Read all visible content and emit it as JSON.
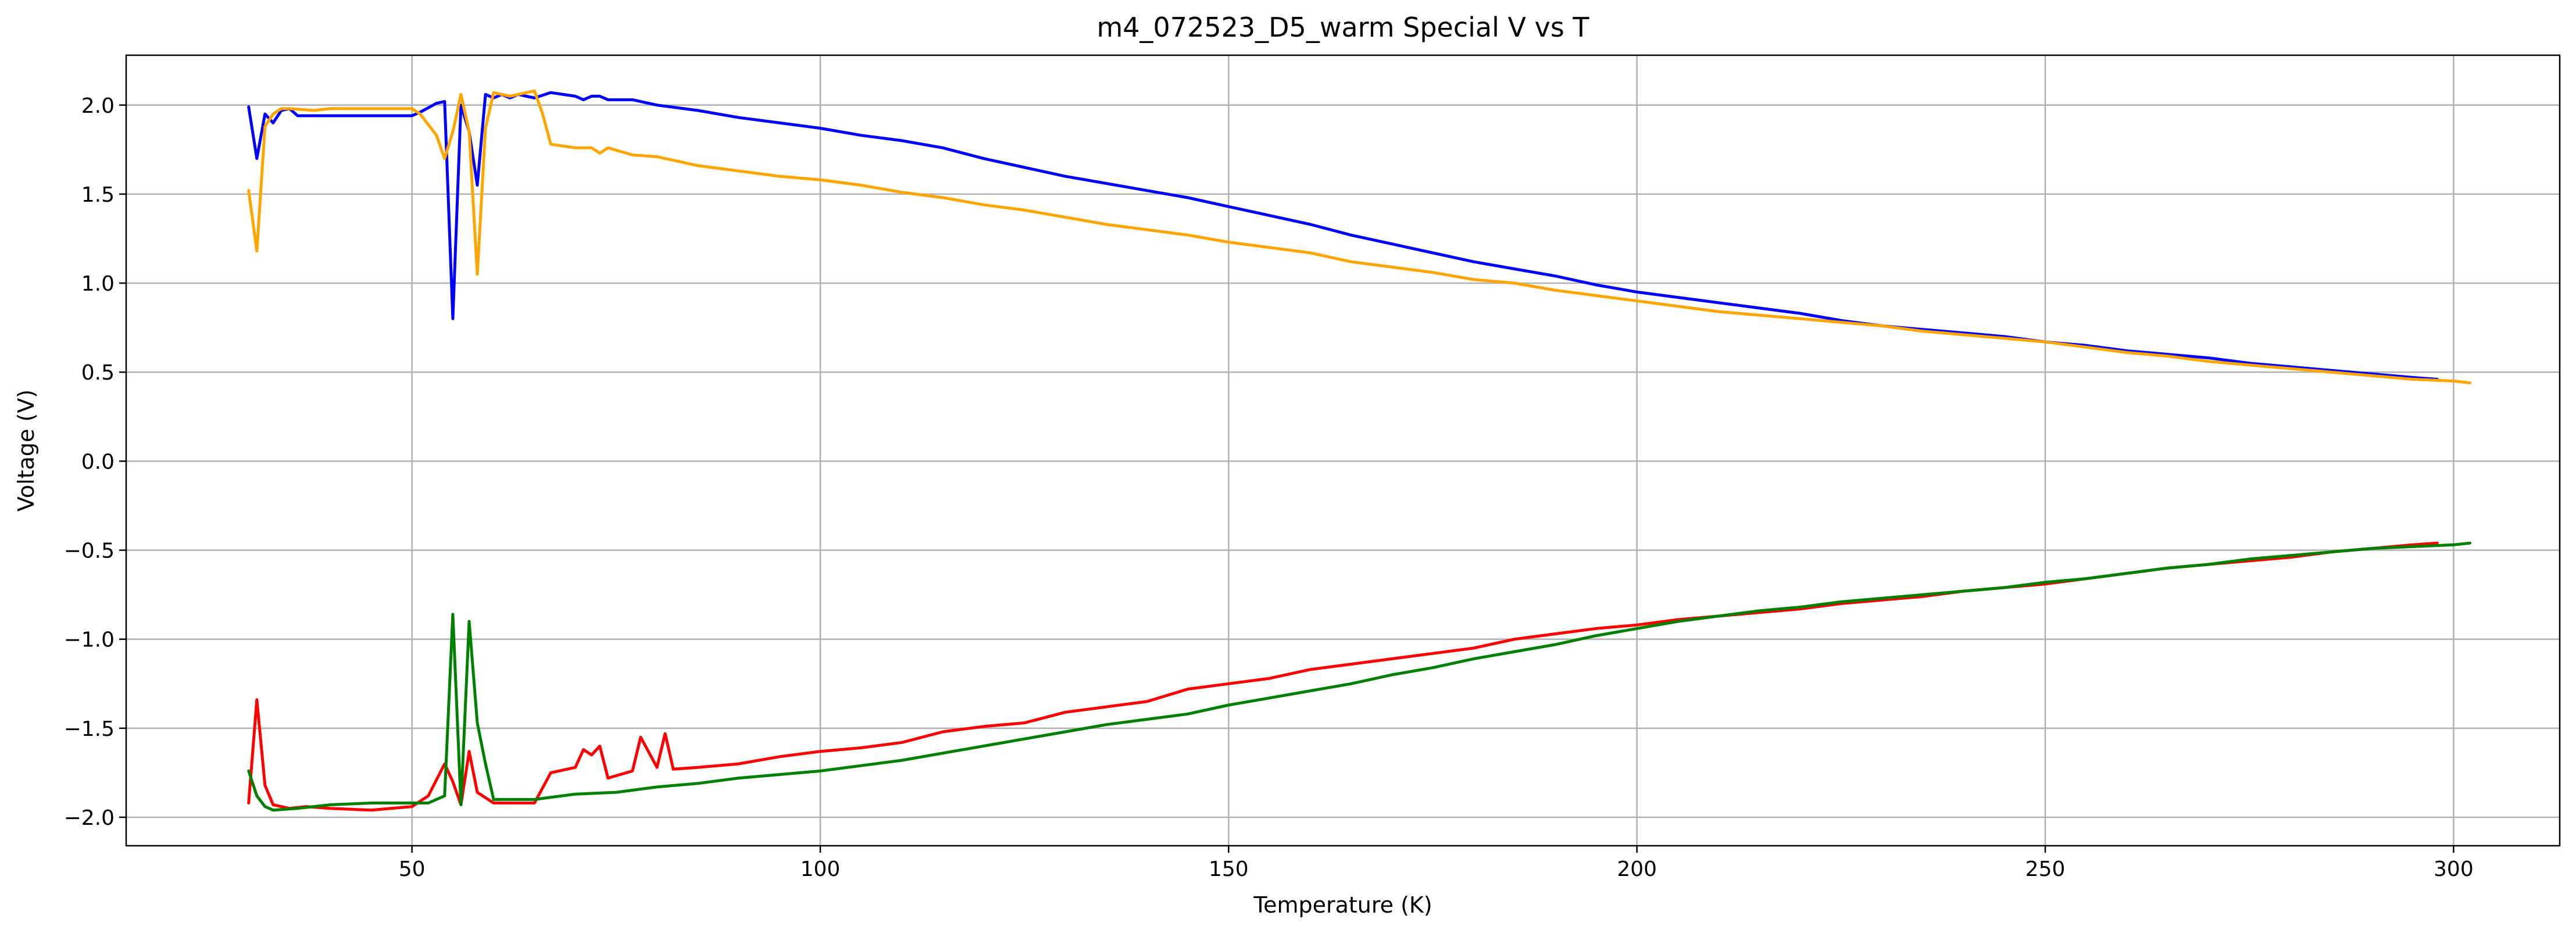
{
  "chart_data": {
    "type": "line",
    "title": "m4_072523_D5_warm Special V vs T",
    "xlabel": "Temperature (K)",
    "ylabel": "Voltage (V)",
    "xlim": [
      15,
      313
    ],
    "ylim": [
      -2.16,
      2.28
    ],
    "xticks": [
      50,
      100,
      150,
      200,
      250,
      300
    ],
    "yticks": [
      -2.0,
      -1.5,
      -1.0,
      -0.5,
      0.0,
      0.5,
      1.0,
      1.5,
      2.0
    ],
    "xtick_labels": [
      "50",
      "100",
      "150",
      "200",
      "250",
      "300"
    ],
    "ytick_labels": [
      "−2.0",
      "−1.5",
      "−1.0",
      "−0.5",
      "0.0",
      "0.5",
      "1.0",
      "1.5",
      "2.0"
    ],
    "grid": true,
    "series": [
      {
        "color": "#0000ff",
        "points": [
          [
            30,
            1.99
          ],
          [
            31,
            1.7
          ],
          [
            32,
            1.95
          ],
          [
            33,
            1.9
          ],
          [
            34,
            1.97
          ],
          [
            35,
            1.98
          ],
          [
            36,
            1.94
          ],
          [
            40,
            1.94
          ],
          [
            45,
            1.94
          ],
          [
            50,
            1.94
          ],
          [
            51,
            1.96
          ],
          [
            53,
            2.01
          ],
          [
            54,
            2.02
          ],
          [
            55,
            0.8
          ],
          [
            56,
            2.0
          ],
          [
            57,
            1.85
          ],
          [
            58,
            1.55
          ],
          [
            59,
            2.06
          ],
          [
            60,
            2.04
          ],
          [
            61,
            2.06
          ],
          [
            62,
            2.04
          ],
          [
            63,
            2.06
          ],
          [
            64,
            2.05
          ],
          [
            65,
            2.04
          ],
          [
            67,
            2.07
          ],
          [
            70,
            2.05
          ],
          [
            71,
            2.03
          ],
          [
            72,
            2.05
          ],
          [
            73,
            2.05
          ],
          [
            74,
            2.03
          ],
          [
            77,
            2.03
          ],
          [
            80,
            2.0
          ],
          [
            85,
            1.97
          ],
          [
            90,
            1.93
          ],
          [
            95,
            1.9
          ],
          [
            100,
            1.87
          ],
          [
            105,
            1.83
          ],
          [
            110,
            1.8
          ],
          [
            115,
            1.76
          ],
          [
            120,
            1.7
          ],
          [
            125,
            1.65
          ],
          [
            130,
            1.6
          ],
          [
            135,
            1.56
          ],
          [
            140,
            1.52
          ],
          [
            145,
            1.48
          ],
          [
            150,
            1.43
          ],
          [
            155,
            1.38
          ],
          [
            160,
            1.33
          ],
          [
            165,
            1.27
          ],
          [
            170,
            1.22
          ],
          [
            175,
            1.17
          ],
          [
            180,
            1.12
          ],
          [
            185,
            1.08
          ],
          [
            190,
            1.04
          ],
          [
            195,
            0.99
          ],
          [
            200,
            0.95
          ],
          [
            205,
            0.92
          ],
          [
            210,
            0.89
          ],
          [
            215,
            0.86
          ],
          [
            220,
            0.83
          ],
          [
            225,
            0.79
          ],
          [
            230,
            0.76
          ],
          [
            235,
            0.74
          ],
          [
            240,
            0.72
          ],
          [
            245,
            0.7
          ],
          [
            250,
            0.67
          ],
          [
            255,
            0.65
          ],
          [
            260,
            0.62
          ],
          [
            265,
            0.6
          ],
          [
            270,
            0.58
          ],
          [
            275,
            0.55
          ],
          [
            280,
            0.53
          ],
          [
            285,
            0.51
          ],
          [
            290,
            0.49
          ],
          [
            295,
            0.47
          ],
          [
            298,
            0.46
          ]
        ]
      },
      {
        "color": "#ffa500",
        "points": [
          [
            30,
            1.52
          ],
          [
            31,
            1.18
          ],
          [
            32,
            1.88
          ],
          [
            33,
            1.95
          ],
          [
            34,
            1.98
          ],
          [
            35,
            1.98
          ],
          [
            38,
            1.97
          ],
          [
            40,
            1.98
          ],
          [
            45,
            1.98
          ],
          [
            50,
            1.98
          ],
          [
            51,
            1.95
          ],
          [
            53,
            1.83
          ],
          [
            54,
            1.7
          ],
          [
            55,
            1.85
          ],
          [
            56,
            2.06
          ],
          [
            57,
            1.85
          ],
          [
            58,
            1.05
          ],
          [
            59,
            1.87
          ],
          [
            60,
            2.07
          ],
          [
            61,
            2.06
          ],
          [
            62,
            2.05
          ],
          [
            63,
            2.06
          ],
          [
            65,
            2.08
          ],
          [
            66,
            1.95
          ],
          [
            67,
            1.78
          ],
          [
            70,
            1.76
          ],
          [
            72,
            1.76
          ],
          [
            73,
            1.73
          ],
          [
            74,
            1.76
          ],
          [
            77,
            1.72
          ],
          [
            80,
            1.71
          ],
          [
            85,
            1.66
          ],
          [
            90,
            1.63
          ],
          [
            95,
            1.6
          ],
          [
            100,
            1.58
          ],
          [
            105,
            1.55
          ],
          [
            110,
            1.51
          ],
          [
            115,
            1.48
          ],
          [
            120,
            1.44
          ],
          [
            125,
            1.41
          ],
          [
            130,
            1.37
          ],
          [
            135,
            1.33
          ],
          [
            140,
            1.3
          ],
          [
            145,
            1.27
          ],
          [
            150,
            1.23
          ],
          [
            155,
            1.2
          ],
          [
            160,
            1.17
          ],
          [
            165,
            1.12
          ],
          [
            170,
            1.09
          ],
          [
            175,
            1.06
          ],
          [
            180,
            1.02
          ],
          [
            185,
            1.0
          ],
          [
            190,
            0.96
          ],
          [
            195,
            0.93
          ],
          [
            200,
            0.9
          ],
          [
            205,
            0.87
          ],
          [
            210,
            0.84
          ],
          [
            215,
            0.82
          ],
          [
            220,
            0.8
          ],
          [
            225,
            0.78
          ],
          [
            230,
            0.76
          ],
          [
            235,
            0.73
          ],
          [
            240,
            0.71
          ],
          [
            245,
            0.69
          ],
          [
            250,
            0.67
          ],
          [
            255,
            0.64
          ],
          [
            260,
            0.61
          ],
          [
            265,
            0.59
          ],
          [
            270,
            0.56
          ],
          [
            275,
            0.54
          ],
          [
            280,
            0.52
          ],
          [
            285,
            0.5
          ],
          [
            290,
            0.48
          ],
          [
            295,
            0.46
          ],
          [
            300,
            0.45
          ],
          [
            302,
            0.44
          ]
        ]
      },
      {
        "color": "#ff0000",
        "points": [
          [
            30,
            -1.92
          ],
          [
            31,
            -1.34
          ],
          [
            32,
            -1.82
          ],
          [
            33,
            -1.93
          ],
          [
            35,
            -1.95
          ],
          [
            37,
            -1.94
          ],
          [
            40,
            -1.95
          ],
          [
            45,
            -1.96
          ],
          [
            50,
            -1.94
          ],
          [
            52,
            -1.88
          ],
          [
            54,
            -1.7
          ],
          [
            55,
            -1.8
          ],
          [
            56,
            -1.93
          ],
          [
            57,
            -1.63
          ],
          [
            58,
            -1.86
          ],
          [
            60,
            -1.92
          ],
          [
            65,
            -1.92
          ],
          [
            67,
            -1.75
          ],
          [
            70,
            -1.72
          ],
          [
            71,
            -1.62
          ],
          [
            72,
            -1.65
          ],
          [
            73,
            -1.6
          ],
          [
            74,
            -1.78
          ],
          [
            77,
            -1.74
          ],
          [
            78,
            -1.55
          ],
          [
            80,
            -1.72
          ],
          [
            81,
            -1.53
          ],
          [
            82,
            -1.73
          ],
          [
            85,
            -1.72
          ],
          [
            90,
            -1.7
          ],
          [
            95,
            -1.66
          ],
          [
            100,
            -1.63
          ],
          [
            105,
            -1.61
          ],
          [
            110,
            -1.58
          ],
          [
            115,
            -1.52
          ],
          [
            120,
            -1.49
          ],
          [
            125,
            -1.47
          ],
          [
            130,
            -1.41
          ],
          [
            135,
            -1.38
          ],
          [
            140,
            -1.35
          ],
          [
            145,
            -1.28
          ],
          [
            150,
            -1.25
          ],
          [
            155,
            -1.22
          ],
          [
            160,
            -1.17
          ],
          [
            165,
            -1.14
          ],
          [
            170,
            -1.11
          ],
          [
            175,
            -1.08
          ],
          [
            180,
            -1.05
          ],
          [
            185,
            -1.0
          ],
          [
            190,
            -0.97
          ],
          [
            195,
            -0.94
          ],
          [
            200,
            -0.92
          ],
          [
            205,
            -0.89
          ],
          [
            210,
            -0.87
          ],
          [
            215,
            -0.85
          ],
          [
            220,
            -0.83
          ],
          [
            225,
            -0.8
          ],
          [
            230,
            -0.78
          ],
          [
            235,
            -0.76
          ],
          [
            240,
            -0.73
          ],
          [
            245,
            -0.71
          ],
          [
            250,
            -0.69
          ],
          [
            255,
            -0.66
          ],
          [
            260,
            -0.63
          ],
          [
            265,
            -0.6
          ],
          [
            270,
            -0.58
          ],
          [
            275,
            -0.56
          ],
          [
            280,
            -0.54
          ],
          [
            285,
            -0.51
          ],
          [
            290,
            -0.49
          ],
          [
            295,
            -0.47
          ],
          [
            298,
            -0.46
          ]
        ]
      },
      {
        "color": "#008000",
        "points": [
          [
            30,
            -1.74
          ],
          [
            31,
            -1.88
          ],
          [
            32,
            -1.94
          ],
          [
            33,
            -1.96
          ],
          [
            36,
            -1.95
          ],
          [
            40,
            -1.93
          ],
          [
            45,
            -1.92
          ],
          [
            50,
            -1.92
          ],
          [
            52,
            -1.92
          ],
          [
            54,
            -1.88
          ],
          [
            55,
            -0.86
          ],
          [
            56,
            -1.93
          ],
          [
            57,
            -0.9
          ],
          [
            58,
            -1.47
          ],
          [
            59,
            -1.7
          ],
          [
            60,
            -1.9
          ],
          [
            65,
            -1.9
          ],
          [
            70,
            -1.87
          ],
          [
            75,
            -1.86
          ],
          [
            80,
            -1.83
          ],
          [
            85,
            -1.81
          ],
          [
            90,
            -1.78
          ],
          [
            95,
            -1.76
          ],
          [
            100,
            -1.74
          ],
          [
            105,
            -1.71
          ],
          [
            110,
            -1.68
          ],
          [
            115,
            -1.64
          ],
          [
            120,
            -1.6
          ],
          [
            125,
            -1.56
          ],
          [
            130,
            -1.52
          ],
          [
            135,
            -1.48
          ],
          [
            140,
            -1.45
          ],
          [
            145,
            -1.42
          ],
          [
            150,
            -1.37
          ],
          [
            155,
            -1.33
          ],
          [
            160,
            -1.29
          ],
          [
            165,
            -1.25
          ],
          [
            170,
            -1.2
          ],
          [
            175,
            -1.16
          ],
          [
            180,
            -1.11
          ],
          [
            185,
            -1.07
          ],
          [
            190,
            -1.03
          ],
          [
            195,
            -0.98
          ],
          [
            200,
            -0.94
          ],
          [
            205,
            -0.9
          ],
          [
            210,
            -0.87
          ],
          [
            215,
            -0.84
          ],
          [
            220,
            -0.82
          ],
          [
            225,
            -0.79
          ],
          [
            230,
            -0.77
          ],
          [
            235,
            -0.75
          ],
          [
            240,
            -0.73
          ],
          [
            245,
            -0.71
          ],
          [
            250,
            -0.68
          ],
          [
            255,
            -0.66
          ],
          [
            260,
            -0.63
          ],
          [
            265,
            -0.6
          ],
          [
            270,
            -0.58
          ],
          [
            275,
            -0.55
          ],
          [
            280,
            -0.53
          ],
          [
            285,
            -0.51
          ],
          [
            290,
            -0.49
          ],
          [
            295,
            -0.48
          ],
          [
            300,
            -0.47
          ],
          [
            302,
            -0.46
          ]
        ]
      }
    ]
  }
}
